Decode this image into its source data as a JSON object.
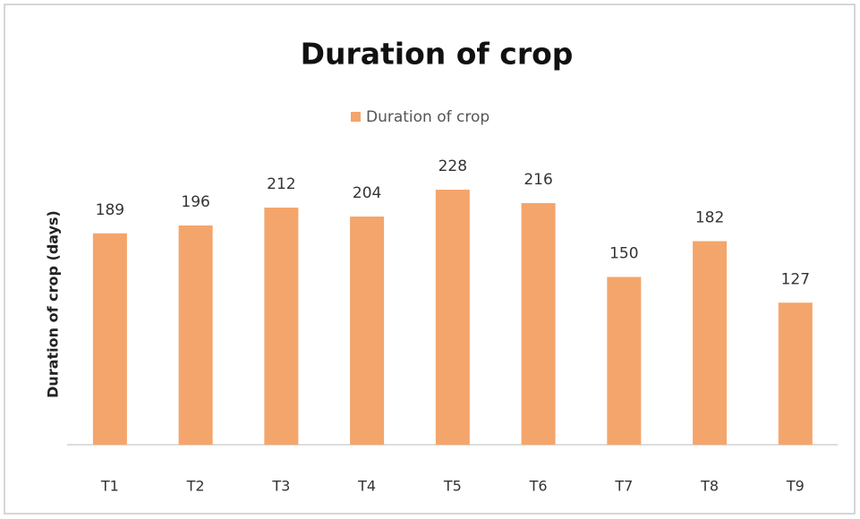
{
  "chart_data": {
    "type": "bar",
    "title": "Duration of crop",
    "legend": "Duration of crop",
    "y_label": "Duration of crop (days)",
    "categories": [
      "T1",
      "T2",
      "T3",
      "T4",
      "T5",
      "T6",
      "T7",
      "T8",
      "T9"
    ],
    "values": [
      189,
      196,
      212,
      204,
      228,
      216,
      150,
      182,
      127
    ],
    "color": "#f4a56b",
    "ylim": [
      0,
      250
    ],
    "legend_position": "top"
  }
}
